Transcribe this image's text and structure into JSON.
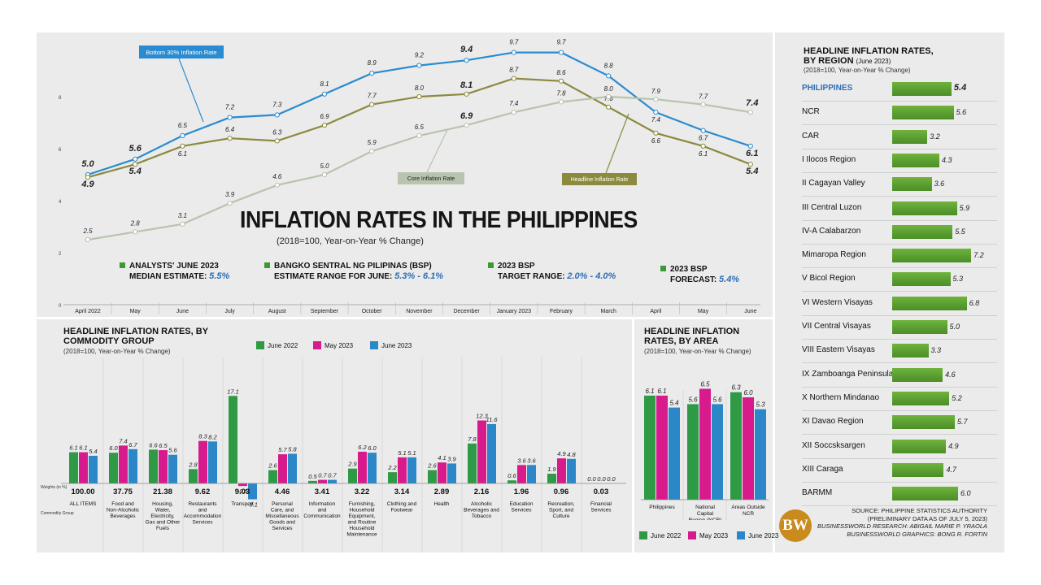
{
  "title": "INFLATION RATES IN THE PHILIPPINES",
  "subtitle": "(2018=100, Year-on-Year % Change)",
  "colors": {
    "bottom30": "#2a8bd0",
    "core": "#b8c4ad",
    "headline": "#8b8a3f",
    "g2022": "#2e9a46",
    "m2023": "#d81b8c",
    "j2023": "#2b87c8",
    "regionbar": "#5aa332",
    "accent": "#2b6fb6"
  },
  "estimates": [
    {
      "line1": "ANALYSTS' JUNE 2023",
      "line2": "MEDIAN ESTIMATE:",
      "value": "5.5%"
    },
    {
      "line1": "BANGKO SENTRAL NG PILIPINAS (BSP)",
      "line2": "ESTIMATE RANGE FOR JUNE:",
      "value": "5.3% - 6.1%"
    },
    {
      "line1": "2023 BSP",
      "line2": "TARGET RANGE:",
      "value": "2.0% - 4.0%"
    },
    {
      "line1": "2023 BSP",
      "line2": "FORECAST:",
      "value": "5.4%"
    }
  ],
  "chart_data": [
    {
      "type": "line",
      "title": "INFLATION RATES IN THE PHILIPPINES",
      "categories": [
        "April 2022",
        "May",
        "June",
        "July",
        "August",
        "September",
        "October",
        "November",
        "December",
        "January 2023",
        "February",
        "March",
        "April",
        "May",
        "June"
      ],
      "yticks": [
        "0",
        "2",
        "4",
        "6",
        "8"
      ],
      "ylim": [
        0,
        10
      ],
      "series": [
        {
          "name": "Bottom 30% Inflation Rate",
          "values": [
            5.0,
            5.6,
            6.5,
            7.2,
            7.3,
            8.1,
            8.9,
            9.2,
            9.4,
            9.7,
            9.7,
            8.8,
            7.4,
            6.7,
            6.1
          ],
          "labels": [
            "5.0",
            "5.6",
            "6.5",
            "7.2",
            "7.3",
            "8.1",
            "8.9",
            "9.2",
            "9.4",
            "9.7",
            "9.7",
            "8.8",
            "7.4",
            "6.7",
            "6.1"
          ]
        },
        {
          "name": "Headline Inflation Rate",
          "values": [
            4.9,
            5.4,
            6.1,
            6.4,
            6.3,
            6.9,
            7.7,
            8.0,
            8.1,
            8.7,
            8.6,
            7.6,
            6.6,
            6.1,
            5.4
          ],
          "labels": [
            "4.9",
            "5.4",
            "6.1",
            "6.4",
            "6.3",
            "6.9",
            "7.7",
            "8.0",
            "8.1",
            "8.7",
            "8.6",
            "7.6",
            "6.6",
            "6.1",
            "5.4"
          ]
        },
        {
          "name": "Core Inflation Rate",
          "values": [
            2.5,
            2.8,
            3.1,
            3.9,
            4.6,
            5.0,
            5.9,
            6.5,
            6.9,
            7.4,
            7.8,
            8.0,
            7.9,
            7.7,
            7.4
          ],
          "labels": [
            "2.5",
            "2.8",
            "3.1",
            "3.9",
            "4.6",
            "5.0",
            "5.9",
            "6.5",
            "6.9",
            "7.4",
            "7.8",
            "8.0",
            "7.9",
            "7.7",
            "7.4"
          ]
        }
      ]
    },
    {
      "type": "bar",
      "title": "HEADLINE INFLATION RATES, BY COMMODITY GROUP",
      "subtitle": "(2018=100, Year-on-Year % Change)",
      "weights_label": "Weights (in %)",
      "group_label": "Commodity Group",
      "legend": [
        "June 2022",
        "May 2023",
        "June 2023"
      ],
      "categories": [
        "ALL ITEMS",
        "Food and Non-Alcoholic Beverages",
        "Housing, Water, Electricity, Gas and Other Fuels",
        "Restaurants and Accommodation Services",
        "Transport",
        "Personal Care, and Miscellaneous Goods and Services",
        "Information and Communication",
        "Furnishing, Household Equipment, and Routine Household Maintenance",
        "Clothing and Footwear",
        "Health",
        "Alcoholic Beverages and Tobacco",
        "Education Services",
        "Recreation, Sport, and Culture",
        "Financial Services"
      ],
      "weights": [
        "100.00",
        "37.75",
        "21.38",
        "9.62",
        "9.03",
        "4.46",
        "3.41",
        "3.22",
        "3.14",
        "2.89",
        "2.16",
        "1.96",
        "0.96",
        "0.03"
      ],
      "series": [
        {
          "name": "June 2022",
          "values": [
            6.1,
            6.0,
            6.6,
            2.8,
            17.1,
            2.6,
            0.5,
            2.9,
            2.2,
            2.6,
            7.8,
            0.6,
            1.9,
            0.0
          ],
          "labels": [
            "6.1",
            "6.0",
            "6.6",
            "2.8",
            "17.1",
            "2.6",
            "0.5",
            "2.9",
            "2.2",
            "2.6",
            "7.8",
            "0.6",
            "1.9",
            "0.0"
          ]
        },
        {
          "name": "May 2023",
          "values": [
            6.1,
            7.4,
            6.5,
            8.3,
            -0.5,
            5.7,
            0.7,
            6.2,
            5.1,
            4.1,
            12.3,
            3.6,
            4.9,
            0.0
          ],
          "labels": [
            "6.1",
            "7.4",
            "6.5",
            "8.3",
            "-0.5",
            "5.7",
            "0.7",
            "6.2",
            "5.1",
            "4.1",
            "12.3",
            "3.6",
            "4.9",
            "0.0"
          ]
        },
        {
          "name": "June 2023",
          "values": [
            5.4,
            6.7,
            5.6,
            8.2,
            -3.1,
            5.8,
            0.7,
            6.0,
            5.1,
            3.9,
            11.6,
            3.6,
            4.8,
            0.0
          ],
          "labels": [
            "5.4",
            "6.7",
            "5.6",
            "8.2",
            "-3.1",
            "5.8",
            "0.7",
            "6.0",
            "5.1",
            "3.9",
            "11.6",
            "3.6",
            "4.8",
            "0.0"
          ]
        }
      ]
    },
    {
      "type": "bar",
      "title": "HEADLINE INFLATION RATES, BY AREA",
      "subtitle": "(2018=100, Year-on-Year % Change)",
      "legend": [
        "June 2022",
        "May 2023",
        "June 2023"
      ],
      "categories": [
        "Philippines",
        "National Capital Region (NCR)",
        "Areas Outside NCR"
      ],
      "series": [
        {
          "name": "June 2022",
          "values": [
            6.1,
            5.6,
            6.3
          ],
          "labels": [
            "6.1",
            "5.6",
            "6.3"
          ]
        },
        {
          "name": "May 2023",
          "values": [
            6.1,
            6.5,
            6.0
          ],
          "labels": [
            "6.1",
            "6.5",
            "6.0"
          ]
        },
        {
          "name": "June 2023",
          "values": [
            5.4,
            5.6,
            5.3
          ],
          "labels": [
            "5.4",
            "5.6",
            "5.3"
          ]
        }
      ]
    },
    {
      "type": "bar",
      "title": "HEADLINE INFLATION RATES, BY REGION",
      "title_suffix": "(June 2023)",
      "subtitle": "(2018=100, Year-on-Year % Change)",
      "categories": [
        "PHILIPPINES",
        "NCR",
        "CAR",
        "I Ilocos Region",
        "II Cagayan Valley",
        "III Central Luzon",
        "IV-A Calabarzon",
        "Mimaropa Region",
        "V Bicol Region",
        "VI Western Visayas",
        "VII Central Visayas",
        "VIII Eastern Visayas",
        "IX Zamboanga Peninsula",
        "X Northern Mindanao",
        "XI Davao Region",
        "XII Soccsksargen",
        "XIII Caraga",
        "BARMM"
      ],
      "values": [
        5.4,
        5.6,
        3.2,
        4.3,
        3.6,
        5.9,
        5.5,
        7.2,
        5.3,
        6.8,
        5.0,
        3.3,
        4.6,
        5.2,
        5.7,
        4.9,
        4.7,
        6.0
      ],
      "labels": [
        "5.4",
        "5.6",
        "3.2",
        "4.3",
        "3.6",
        "5.9",
        "5.5",
        "7.2",
        "5.3",
        "6.8",
        "5.0",
        "3.3",
        "4.6",
        "5.2",
        "5.7",
        "4.9",
        "4.7",
        "6.0"
      ]
    }
  ],
  "source": {
    "line1": "SOURCE: PHILIPPINE STATISTICS AUTHORITY",
    "line2": "(PRELIMINARY DATA AS OF JULY 5, 2023)",
    "line3": "BUSINESSWORLD RESEARCH: ABIGAIL MARIE P. YRAOLA",
    "line4": "BUSINESSWORLD GRAPHICS: BONG R. FORTIN"
  },
  "logo_text": "BW"
}
